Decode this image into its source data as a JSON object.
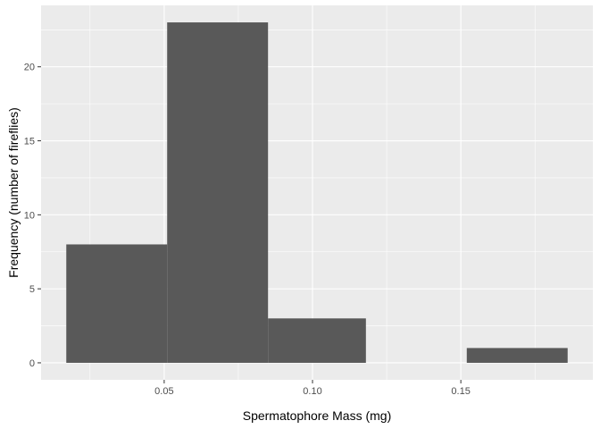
{
  "chart_data": {
    "type": "bar",
    "subtype": "histogram",
    "title": "",
    "xlabel": "Spermatophore Mass (mg)",
    "ylabel": "Frequency (number of fireflies)",
    "bins": [
      {
        "x0": 0.017,
        "x1": 0.051,
        "count": 8
      },
      {
        "x0": 0.051,
        "x1": 0.085,
        "count": 23
      },
      {
        "x0": 0.085,
        "x1": 0.118,
        "count": 3
      },
      {
        "x0": 0.118,
        "x1": 0.152,
        "count": 0
      },
      {
        "x0": 0.152,
        "x1": 0.186,
        "count": 1
      }
    ],
    "xlim": [
      0.0085,
      0.1945
    ],
    "ylim": [
      -1.15,
      24.15
    ],
    "x_major_ticks": [
      0.05,
      0.1,
      0.15
    ],
    "x_tick_labels": [
      "0.05",
      "0.10",
      "0.15"
    ],
    "x_minor_ticks": [
      0.025,
      0.075,
      0.125,
      0.175
    ],
    "y_major_ticks": [
      0,
      5,
      10,
      15,
      20
    ],
    "y_tick_labels": [
      "0",
      "5",
      "10",
      "15",
      "20"
    ],
    "y_minor_ticks": [
      2.5,
      7.5,
      12.5,
      17.5,
      22.5
    ],
    "grid": true,
    "legend": "none",
    "colors": {
      "bar_fill": "#595959",
      "panel_background": "#ebebeb",
      "grid_line": "#ffffff",
      "tick_text": "#4d4d4d",
      "tick_mark": "#333333",
      "axis_title": "#000000"
    }
  }
}
